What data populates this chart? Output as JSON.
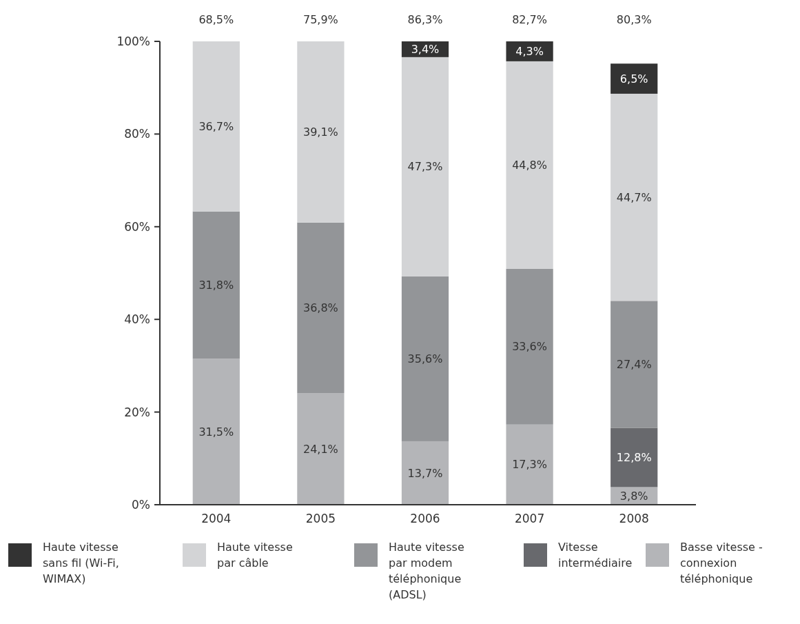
{
  "chart_data": {
    "type": "bar",
    "stacked": true,
    "categories": [
      "2004",
      "2005",
      "2006",
      "2007",
      "2008"
    ],
    "ylim": [
      0,
      100
    ],
    "yticks": [
      {
        "value": 0,
        "label": "0%"
      },
      {
        "value": 20,
        "label": "20%"
      },
      {
        "value": 40,
        "label": "40%"
      },
      {
        "value": 60,
        "label": "60%"
      },
      {
        "value": 80,
        "label": "80%"
      },
      {
        "value": 100,
        "label": "100%"
      }
    ],
    "grid": false,
    "legend": "bottom",
    "series": [
      {
        "name": "Basse vitesse - connexion téléphonique",
        "color": "#b4b5b8",
        "values": [
          31.5,
          24.1,
          13.7,
          17.3,
          3.8
        ],
        "value_labels": [
          "31,5%",
          "24,1%",
          "13,7%",
          "17,3%",
          "3,8%"
        ]
      },
      {
        "name": "Vitesse intermédiaire",
        "color": "#68696d",
        "values": [
          null,
          null,
          null,
          null,
          12.8
        ],
        "value_labels": [
          null,
          null,
          null,
          null,
          "12,8%"
        ]
      },
      {
        "name": "Haute vitesse par modem téléphonique (ADSL)",
        "color": "#939598",
        "values": [
          31.8,
          36.8,
          35.6,
          33.6,
          27.4
        ],
        "value_labels": [
          "31,8%",
          "36,8%",
          "35,6%",
          "33,6%",
          "27,4%"
        ]
      },
      {
        "name": "Haute vitesse par câble",
        "color": "#d3d4d6",
        "values": [
          36.7,
          39.1,
          47.3,
          44.8,
          44.7
        ],
        "value_labels": [
          "36,7%",
          "39,1%",
          "47,3%",
          "44,8%",
          "44,7%"
        ]
      },
      {
        "name": "Haute vitesse sans fil (Wi-Fi, WIMAX)",
        "color": "#333333",
        "values": [
          null,
          null,
          3.4,
          4.3,
          6.5
        ],
        "value_labels": [
          null,
          null,
          "3,4%",
          "4,3%",
          "6,5%"
        ]
      }
    ],
    "annotations": [
      "68,5%",
      "75,9%",
      "86,3%",
      "82,7%",
      "80,3%"
    ]
  }
}
